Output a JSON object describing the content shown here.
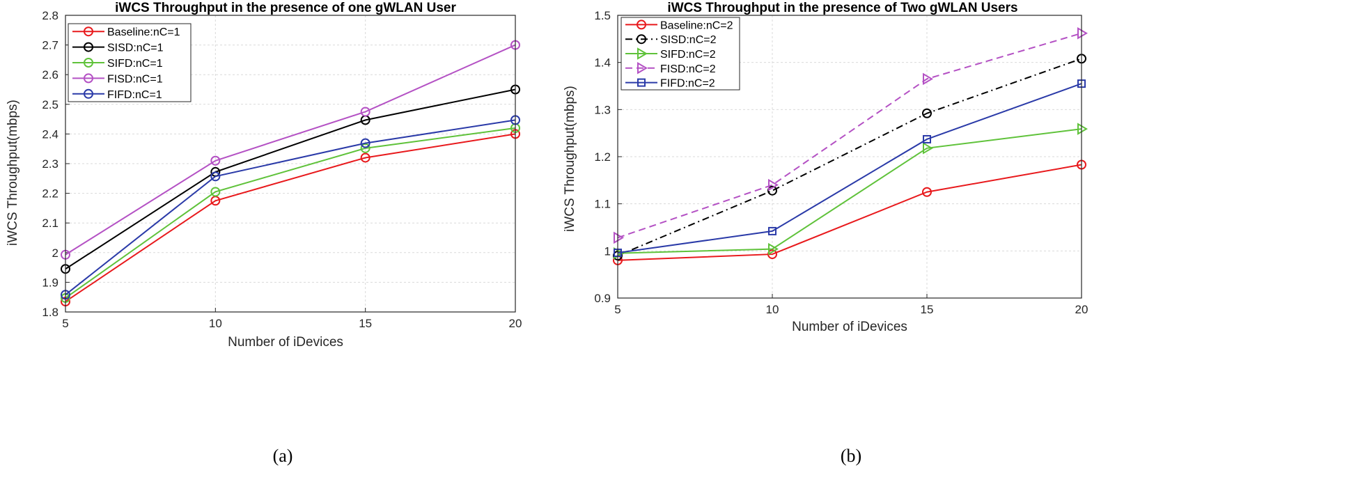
{
  "chart_data": [
    {
      "type": "line",
      "caption": "(a)",
      "title": "iWCS Throughput in the presence of one gWLAN User",
      "xlabel": "Number of iDevices",
      "ylabel": "iWCS Throughput(mbps)",
      "x": [
        5,
        10,
        15,
        20
      ],
      "xlim": [
        5,
        20
      ],
      "ylim": [
        1.8,
        2.8
      ],
      "xticks": [
        "5",
        "10",
        "15",
        "20"
      ],
      "yticks": [
        "1.8",
        "1.9",
        "2",
        "2.1",
        "2.2",
        "2.3",
        "2.4",
        "2.5",
        "2.6",
        "2.7",
        "2.8"
      ],
      "grid": true,
      "legend": "top-left",
      "series": [
        {
          "name": "Baseline:nC=1",
          "values": [
            1.835,
            2.175,
            2.32,
            2.4
          ],
          "color": "#e8191c",
          "marker": "circle",
          "dash": "solid"
        },
        {
          "name": "SISD:nC=1",
          "values": [
            1.945,
            2.272,
            2.447,
            2.55
          ],
          "color": "#000000",
          "marker": "circle",
          "dash": "solid"
        },
        {
          "name": "SIFD:nC=1",
          "values": [
            1.847,
            2.205,
            2.352,
            2.42
          ],
          "color": "#5fc23a",
          "marker": "circle",
          "dash": "solid"
        },
        {
          "name": "FISD:nC=1",
          "values": [
            1.993,
            2.31,
            2.475,
            2.7
          ],
          "color": "#b451c4",
          "marker": "circle",
          "dash": "solid"
        },
        {
          "name": "FIFD:nC=1",
          "values": [
            1.858,
            2.257,
            2.369,
            2.447
          ],
          "color": "#2a3aa8",
          "marker": "circle",
          "dash": "solid"
        }
      ]
    },
    {
      "type": "line",
      "caption": "(b)",
      "title": "iWCS Throughput in the presence of Two gWLAN Users",
      "xlabel": "Number of iDevices",
      "ylabel": "iWCS Throughput(mbps)",
      "x": [
        5,
        10,
        15,
        20
      ],
      "xlim": [
        5,
        20
      ],
      "ylim": [
        0.9,
        1.5
      ],
      "xticks": [
        "5",
        "10",
        "15",
        "20"
      ],
      "yticks": [
        "0.9",
        "1",
        "1.1",
        "1.2",
        "1.3",
        "1.4",
        "1.5"
      ],
      "grid": true,
      "legend": "top-left",
      "series": [
        {
          "name": "Baseline:nC=2",
          "values": [
            0.98,
            0.993,
            1.125,
            1.183
          ],
          "color": "#e8191c",
          "marker": "circle",
          "dash": "solid"
        },
        {
          "name": "SISD:nC=2",
          "values": [
            0.99,
            1.128,
            1.292,
            1.408
          ],
          "color": "#000000",
          "marker": "circle",
          "dash": "dashdot"
        },
        {
          "name": "SIFD:nC=2",
          "values": [
            0.995,
            1.004,
            1.218,
            1.259
          ],
          "color": "#5fc23a",
          "marker": "triangle-right",
          "dash": "solid"
        },
        {
          "name": "FISD:nC=2",
          "values": [
            1.028,
            1.14,
            1.365,
            1.462
          ],
          "color": "#b451c4",
          "marker": "triangle-right",
          "dash": "dashed"
        },
        {
          "name": "FIFD:nC=2",
          "values": [
            0.996,
            1.042,
            1.237,
            1.355
          ],
          "color": "#2a3aa8",
          "marker": "square",
          "dash": "solid"
        }
      ]
    }
  ]
}
